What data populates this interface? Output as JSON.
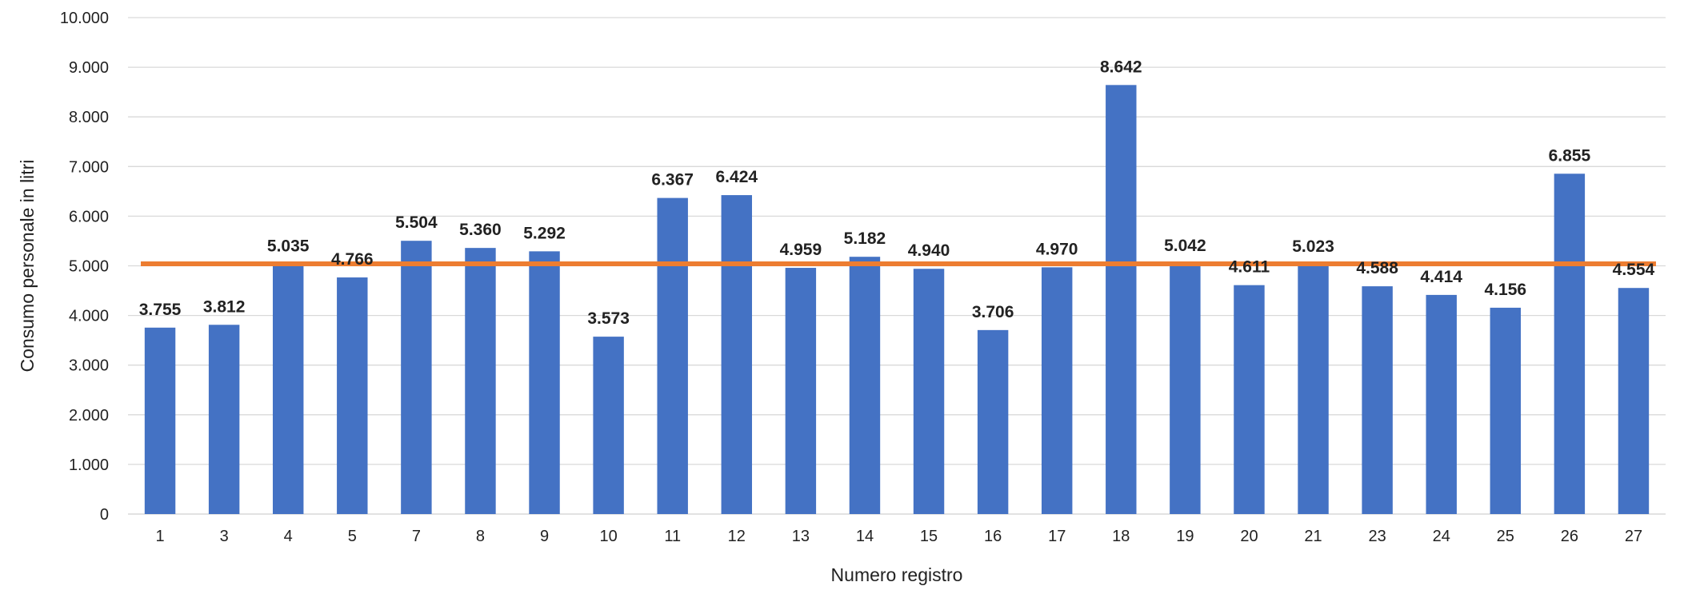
{
  "chart_data": {
    "type": "bar",
    "title": "",
    "xlabel": "Numero registro",
    "ylabel": "Consumo personale in litri",
    "categories": [
      "1",
      "3",
      "4",
      "5",
      "7",
      "8",
      "9",
      "10",
      "11",
      "12",
      "13",
      "14",
      "15",
      "16",
      "17",
      "18",
      "19",
      "20",
      "21",
      "23",
      "24",
      "25",
      "26",
      "27"
    ],
    "series": [
      {
        "values": [
          3755,
          3812,
          5035,
          4766,
          5504,
          5360,
          5292,
          3573,
          6367,
          6424,
          4959,
          5182,
          4940,
          3706,
          4970,
          8642,
          5042,
          4611,
          5023,
          4588,
          4414,
          4156,
          6855,
          4554
        ],
        "labels": [
          "3.755",
          "3.812",
          "5.035",
          "4.766",
          "5.504",
          "5.360",
          "5.292",
          "3.573",
          "6.367",
          "6.424",
          "4.959",
          "5.182",
          "4.940",
          "3.706",
          "4.970",
          "8.642",
          "5.042",
          "4.611",
          "5.023",
          "4.588",
          "4.414",
          "4.156",
          "6.855",
          "4.554"
        ],
        "color": "#4472C4"
      }
    ],
    "reference_line": {
      "value": 5040,
      "color": "#ED7D31"
    },
    "ylim": [
      0,
      10000
    ],
    "yticks": [
      0,
      1000,
      2000,
      3000,
      4000,
      5000,
      6000,
      7000,
      8000,
      9000,
      10000
    ],
    "ytick_labels": [
      "0",
      "1.000",
      "2.000",
      "3.000",
      "4.000",
      "5.000",
      "6.000",
      "7.000",
      "8.000",
      "9.000",
      "10.000"
    ],
    "grid": true,
    "legend": "none",
    "colors": {
      "bars": "#4472C4",
      "average_line": "#ED7D31",
      "grid": "#D9D9D9"
    }
  }
}
